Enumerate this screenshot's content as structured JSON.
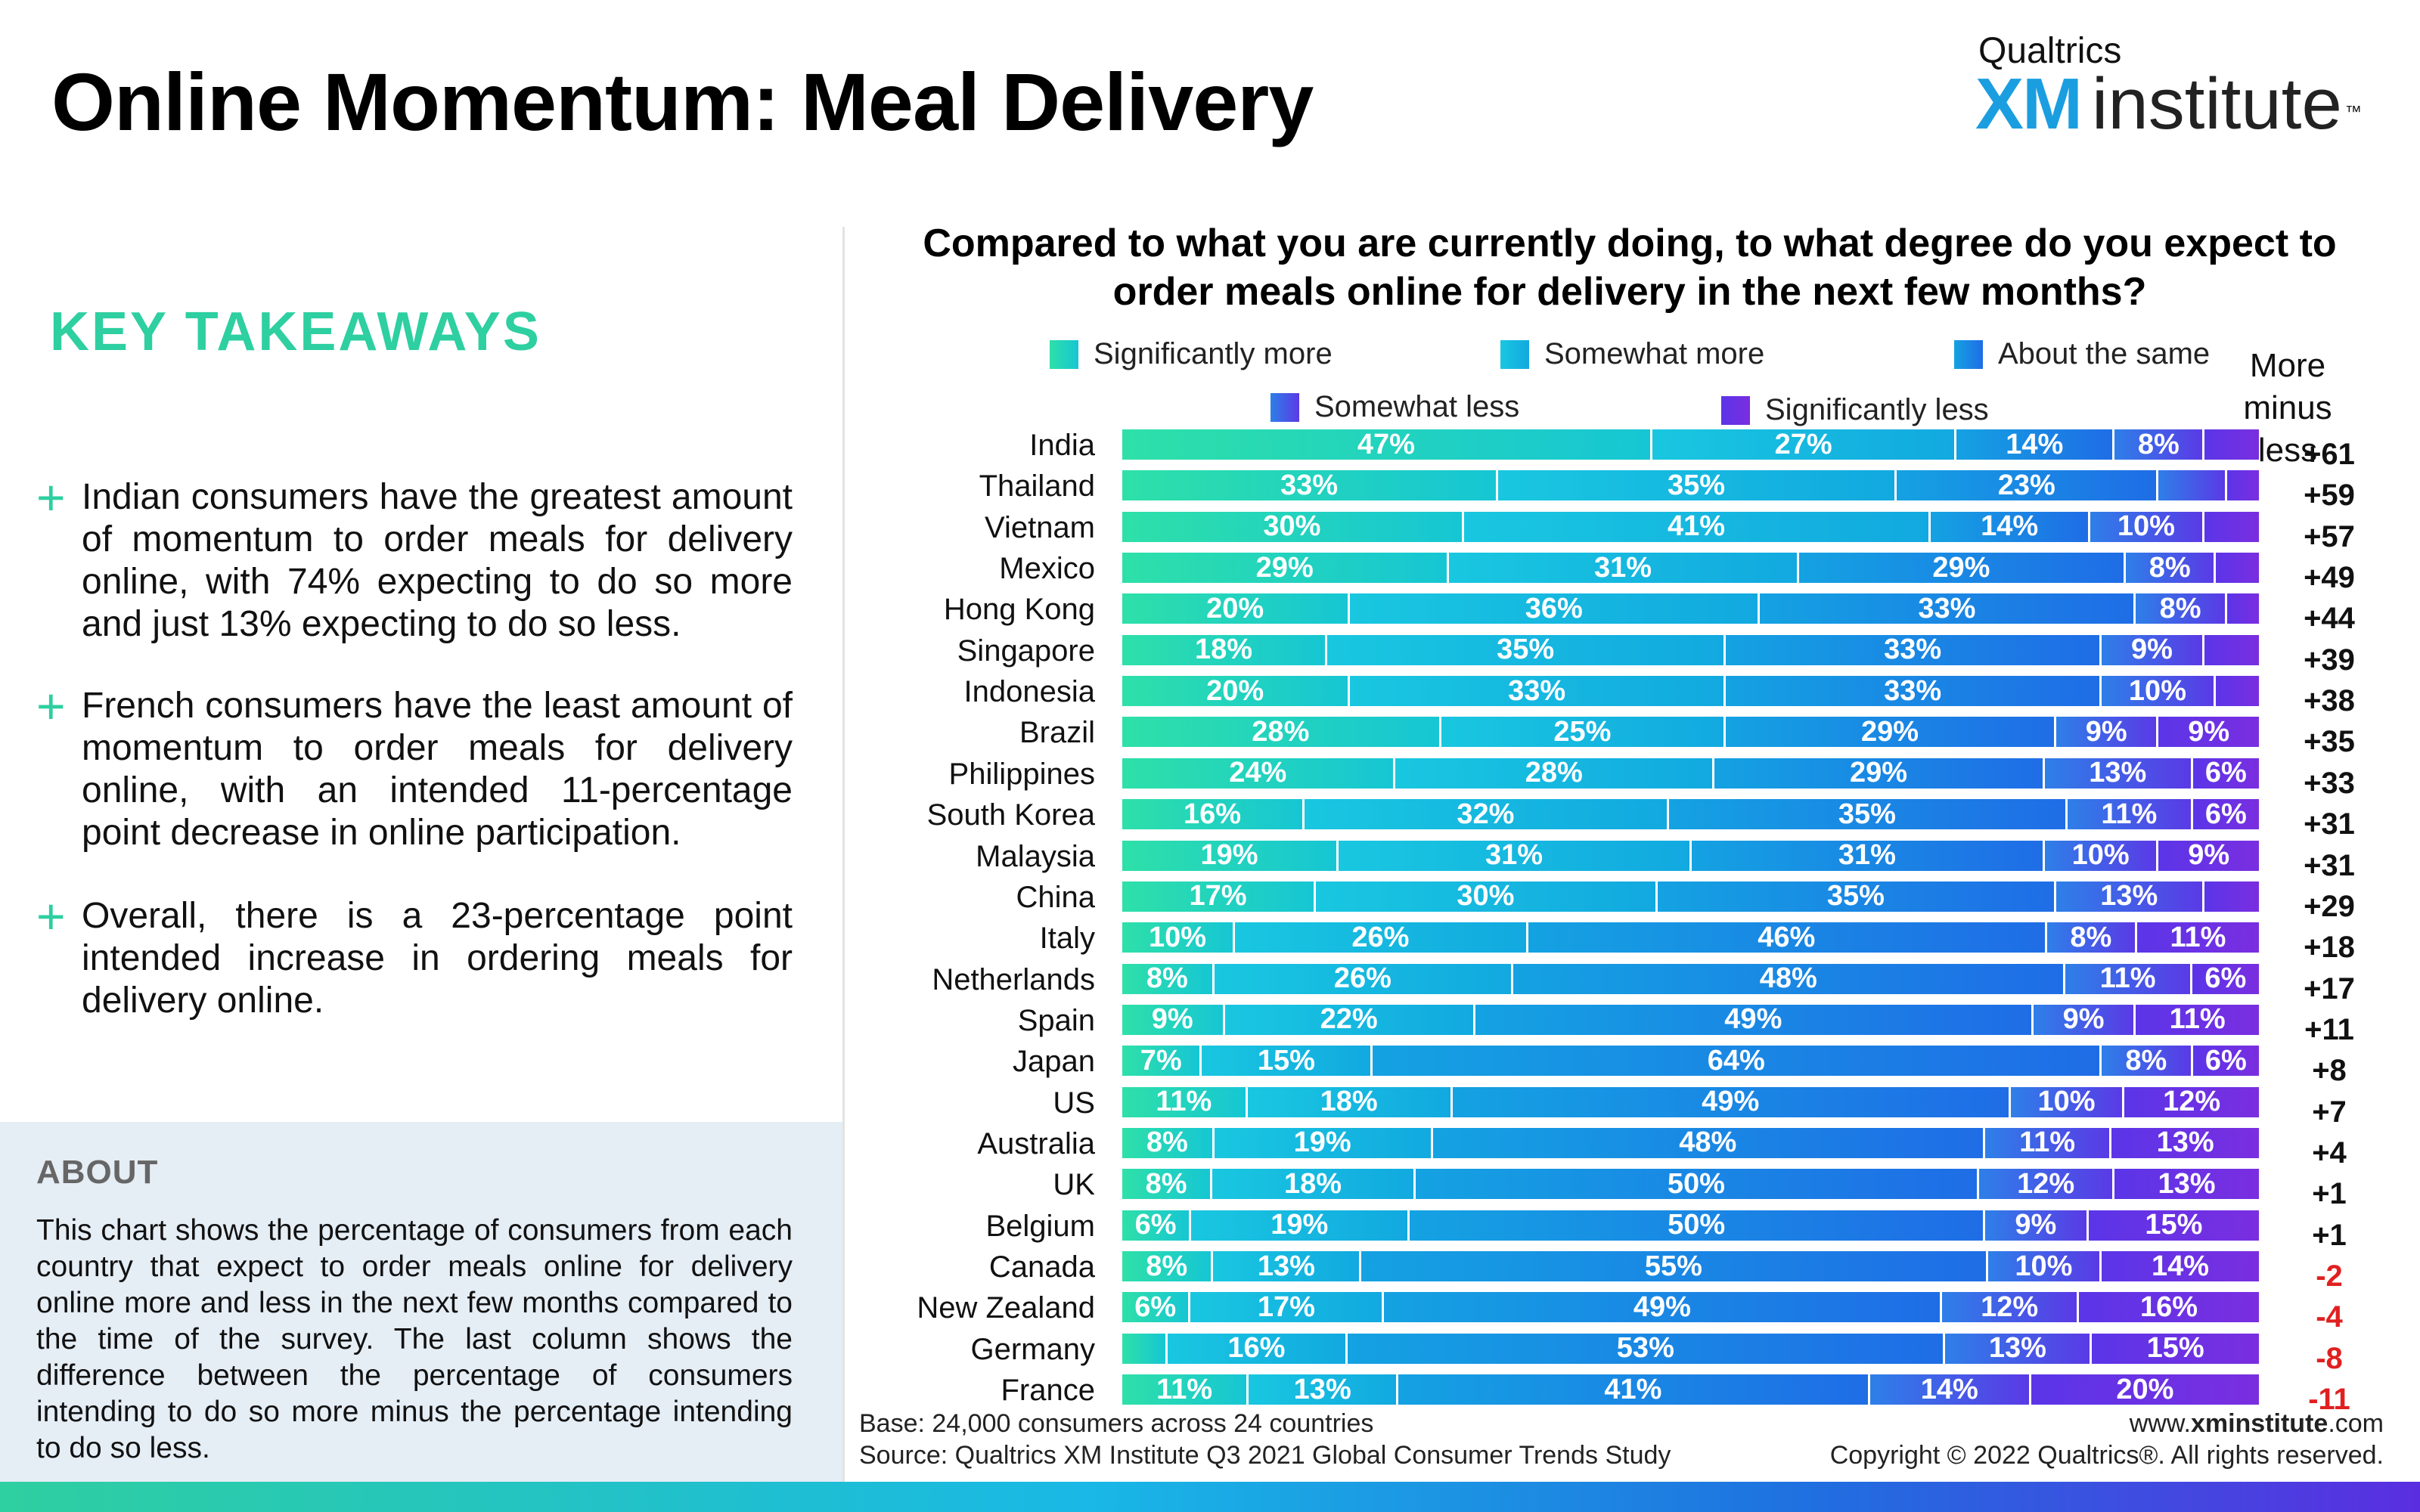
{
  "header": {
    "title": "Online Momentum: Meal Delivery",
    "brand_top": "Qualtrics",
    "brand_xm": "XM",
    "brand_institute": "institute",
    "brand_tm": "™"
  },
  "takeaways": {
    "title": "KEY TAKEAWAYS",
    "items": [
      "Indian consumers have the greatest amount of momentum to order meals for delivery online, with 74% expecting to do so more and just 13% expecting to do so less.",
      "French consumers have the least amount of momentum to order meals for delivery online, with an intended 11-percentage point decrease in online participation.",
      "Overall, there is a 23-percentage point intended increase in ordering meals for delivery online."
    ]
  },
  "about": {
    "title": "ABOUT",
    "text": "This chart shows the percentage of consumers from each country that expect to order meals online for delivery online more and less in the next few months compared to the time of the survey. The last column shows the difference between the percentage of consumers intending to do so more minus the percentage intending to do so less."
  },
  "footer": {
    "base": "Base: 24,000 consumers across 24 countries",
    "source": "Source: Qualtrics XM Institute Q3 2021 Global Consumer Trends Study",
    "url_prefix": "www.",
    "url_bold": "xminstitute",
    "url_suffix": ".com",
    "copyright": "Copyright © 2022 Qualtrics®. All rights reserved."
  },
  "colors": {
    "accent": "#2ecfa0",
    "positive": "#111111",
    "negative": "#e02020"
  },
  "chart_data": {
    "type": "bar",
    "orientation": "horizontal-stacked-100",
    "title": "Compared to what you are currently doing, to what degree do you expect to order meals online for delivery in the next few months?",
    "difference_label": "More minus less",
    "legend_placement": "top",
    "series_names": [
      "Significantly more",
      "Somewhat more",
      "About the same",
      "Somewhat less",
      "Significantly less"
    ],
    "series_colors": [
      [
        "#2ee0a8",
        "#16c6d4"
      ],
      [
        "#19c7e0",
        "#12a9e0"
      ],
      [
        "#14a2e2",
        "#1f6de6"
      ],
      [
        "#2e7fe8",
        "#5a3ae6"
      ],
      [
        "#5b35e8",
        "#7a2ee0"
      ]
    ],
    "categories": [
      "India",
      "Thailand",
      "Vietnam",
      "Mexico",
      "Hong Kong",
      "Singapore",
      "Indonesia",
      "Brazil",
      "Philippines",
      "South Korea",
      "Malaysia",
      "China",
      "Italy",
      "Netherlands",
      "Spain",
      "Japan",
      "US",
      "Australia",
      "UK",
      "Belgium",
      "Canada",
      "New Zealand",
      "Germany",
      "France"
    ],
    "values": [
      [
        47,
        27,
        14,
        8,
        5
      ],
      [
        33,
        35,
        23,
        6,
        3
      ],
      [
        30,
        41,
        14,
        10,
        5
      ],
      [
        29,
        31,
        29,
        8,
        4
      ],
      [
        20,
        36,
        33,
        8,
        3
      ],
      [
        18,
        35,
        33,
        9,
        5
      ],
      [
        20,
        33,
        33,
        10,
        4
      ],
      [
        28,
        25,
        29,
        9,
        9
      ],
      [
        24,
        28,
        29,
        13,
        6
      ],
      [
        16,
        32,
        35,
        11,
        6
      ],
      [
        19,
        31,
        31,
        10,
        9
      ],
      [
        17,
        30,
        35,
        13,
        5
      ],
      [
        10,
        26,
        46,
        8,
        11
      ],
      [
        8,
        26,
        48,
        11,
        6
      ],
      [
        9,
        22,
        49,
        9,
        11
      ],
      [
        7,
        15,
        64,
        8,
        6
      ],
      [
        11,
        18,
        49,
        10,
        12
      ],
      [
        8,
        19,
        48,
        11,
        13
      ],
      [
        8,
        18,
        50,
        12,
        13
      ],
      [
        6,
        19,
        50,
        9,
        15
      ],
      [
        8,
        13,
        55,
        10,
        14
      ],
      [
        6,
        17,
        49,
        12,
        16
      ],
      [
        4,
        16,
        53,
        13,
        15
      ],
      [
        11,
        13,
        41,
        14,
        20
      ]
    ],
    "labels": [
      [
        "47%",
        "27%",
        "14%",
        "8%",
        ""
      ],
      [
        "33%",
        "35%",
        "23%",
        "",
        ""
      ],
      [
        "30%",
        "41%",
        "14%",
        "10%",
        ""
      ],
      [
        "29%",
        "31%",
        "29%",
        "8%",
        ""
      ],
      [
        "20%",
        "36%",
        "33%",
        "8%",
        ""
      ],
      [
        "18%",
        "35%",
        "33%",
        "9%",
        ""
      ],
      [
        "20%",
        "33%",
        "33%",
        "10%",
        ""
      ],
      [
        "28%",
        "25%",
        "29%",
        "9%",
        "9%"
      ],
      [
        "24%",
        "28%",
        "29%",
        "13%",
        "6%"
      ],
      [
        "16%",
        "32%",
        "35%",
        "11%",
        "6%"
      ],
      [
        "19%",
        "31%",
        "31%",
        "10%",
        "9%"
      ],
      [
        "17%",
        "30%",
        "35%",
        "13%",
        ""
      ],
      [
        "10%",
        "26%",
        "46%",
        "8%",
        "11%"
      ],
      [
        "8%",
        "26%",
        "48%",
        "11%",
        "6%"
      ],
      [
        "9%",
        "22%",
        "49%",
        "9%",
        "11%"
      ],
      [
        "7%",
        "15%",
        "64%",
        "8%",
        "6%"
      ],
      [
        "11%",
        "18%",
        "49%",
        "10%",
        "12%"
      ],
      [
        "8%",
        "19%",
        "48%",
        "11%",
        "13%"
      ],
      [
        "8%",
        "18%",
        "50%",
        "12%",
        "13%"
      ],
      [
        "6%",
        "19%",
        "50%",
        "9%",
        "15%"
      ],
      [
        "8%",
        "13%",
        "55%",
        "10%",
        "14%"
      ],
      [
        "6%",
        "17%",
        "49%",
        "12%",
        "16%"
      ],
      [
        "",
        "16%",
        "53%",
        "13%",
        "15%"
      ],
      [
        "11%",
        "13%",
        "41%",
        "14%",
        "20%"
      ]
    ],
    "more_minus_less": [
      "+61",
      "+59",
      "+57",
      "+49",
      "+44",
      "+39",
      "+38",
      "+35",
      "+33",
      "+31",
      "+31",
      "+29",
      "+18",
      "+17",
      "+11",
      "+8",
      "+7",
      "+4",
      "+1",
      "+1",
      "-2",
      "-4",
      "-8",
      "-11"
    ]
  }
}
